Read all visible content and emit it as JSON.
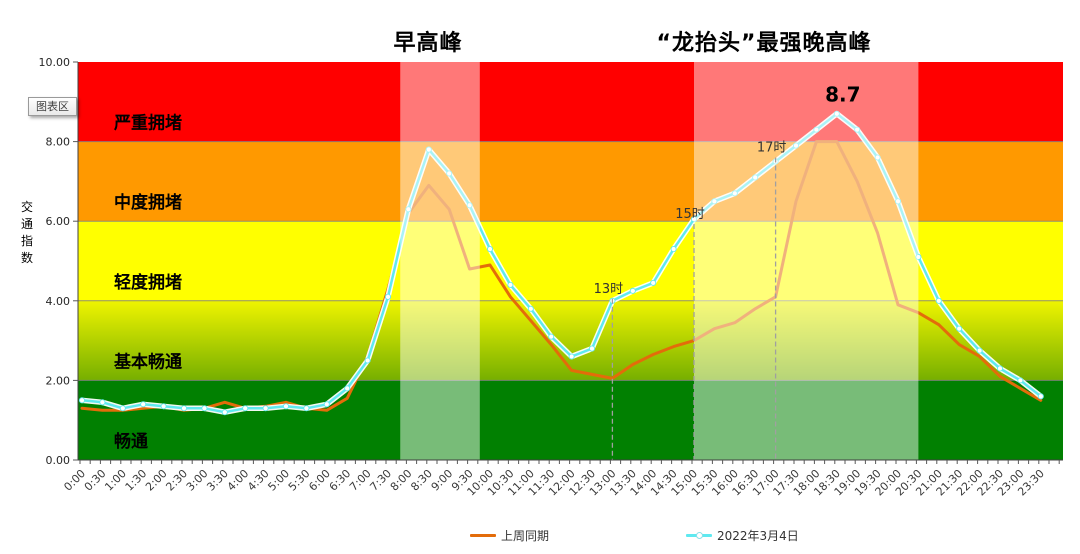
{
  "window": {
    "background": "#FFFFFF"
  },
  "tooltip": {
    "label": "图表区"
  },
  "y_axis": {
    "title": "交通指数",
    "title_stacked": "交\n通\n指\n数",
    "tick_labels": [
      "10.00",
      "8.00",
      "6.00",
      "4.00",
      "2.00",
      "0.00"
    ]
  },
  "legend": {
    "items": [
      {
        "label": "上周同期",
        "color": "#E36C0A",
        "marker": false
      },
      {
        "label": "2022年3月4日",
        "color": "#5FE9F0",
        "marker": true
      }
    ]
  },
  "chart_data": {
    "type": "line",
    "interval": "30min",
    "ylim": [
      0,
      10
    ],
    "grid": "horizontal",
    "legend_position": "bottom",
    "categories": [
      "0:00",
      "0:30",
      "1:00",
      "1:30",
      "2:00",
      "2:30",
      "3:00",
      "3:30",
      "4:00",
      "4:30",
      "5:00",
      "5:30",
      "6:00",
      "6:30",
      "7:00",
      "7:30",
      "8:00",
      "8:30",
      "9:00",
      "9:30",
      "10:00",
      "10:30",
      "11:00",
      "11:30",
      "12:00",
      "12:30",
      "13:00",
      "13:30",
      "14:00",
      "14:30",
      "15:00",
      "15:30",
      "16:00",
      "16:30",
      "17:00",
      "17:30",
      "18:00",
      "18:30",
      "19:00",
      "19:30",
      "20:00",
      "20:30",
      "21:00",
      "21:30",
      "22:00",
      "22:30",
      "23:00",
      "23:30"
    ],
    "series": [
      {
        "name": "上周同期",
        "color": "#E36C0A",
        "line_width": 3,
        "markers": false,
        "halo": false,
        "values": [
          1.3,
          1.25,
          1.25,
          1.3,
          1.35,
          1.25,
          1.3,
          1.45,
          1.3,
          1.35,
          1.45,
          1.3,
          1.25,
          1.55,
          2.6,
          4.3,
          6.2,
          6.9,
          6.3,
          4.8,
          4.9,
          4.1,
          3.5,
          2.9,
          2.25,
          2.15,
          2.05,
          2.4,
          2.65,
          2.85,
          3.0,
          3.3,
          3.45,
          3.8,
          4.1,
          6.5,
          8.0,
          8.0,
          7.0,
          5.7,
          3.9,
          3.7,
          3.4,
          2.9,
          2.6,
          2.1,
          1.8,
          1.5
        ]
      },
      {
        "name": "2022年3月4日",
        "color": "#5FE9F0",
        "line_width": 2.5,
        "markers": true,
        "halo": true,
        "values": [
          1.5,
          1.45,
          1.3,
          1.4,
          1.35,
          1.3,
          1.3,
          1.2,
          1.3,
          1.3,
          1.35,
          1.3,
          1.4,
          1.8,
          2.5,
          4.1,
          6.3,
          7.8,
          7.2,
          6.4,
          5.3,
          4.4,
          3.8,
          3.1,
          2.6,
          2.8,
          4.0,
          4.25,
          4.45,
          5.3,
          6.05,
          6.5,
          6.7,
          7.1,
          7.5,
          7.9,
          8.3,
          8.7,
          8.3,
          7.6,
          6.5,
          5.1,
          4.0,
          3.3,
          2.75,
          2.3,
          2.0,
          1.6
        ]
      }
    ],
    "zones": [
      {
        "label": "严重拥堵",
        "from": 8,
        "to": 10,
        "color": "#FF0000"
      },
      {
        "label": "中度拥堵",
        "from": 6,
        "to": 8,
        "color": "#FF9900"
      },
      {
        "label": "轻度拥堵",
        "from": 4,
        "to": 6,
        "color": "#FFFF00"
      },
      {
        "label": "基本畅通",
        "from": 2,
        "to": 4,
        "gradient": true,
        "color_top": "#EFF400",
        "color_bottom": "#76AF00"
      },
      {
        "label": "畅通",
        "from": 0,
        "to": 2,
        "color": "#018001"
      }
    ],
    "highlight_bands": [
      {
        "label": "早高峰",
        "start_index": 15.6,
        "end_index": 19.5
      },
      {
        "label": "“龙抬头”最强晚高峰",
        "start_index": 30,
        "end_index": 41
      }
    ],
    "time_markers": [
      {
        "label": "13时",
        "index": 26,
        "line_top_value": 4.05
      },
      {
        "label": "15时",
        "index": 30,
        "line_top_value": 5.93
      },
      {
        "label": "17时",
        "index": 34,
        "line_top_value": 7.6
      }
    ],
    "peak_annotation": {
      "label": "8.7",
      "index": 37,
      "value": 8.7,
      "series": "2022年3月4日"
    }
  }
}
